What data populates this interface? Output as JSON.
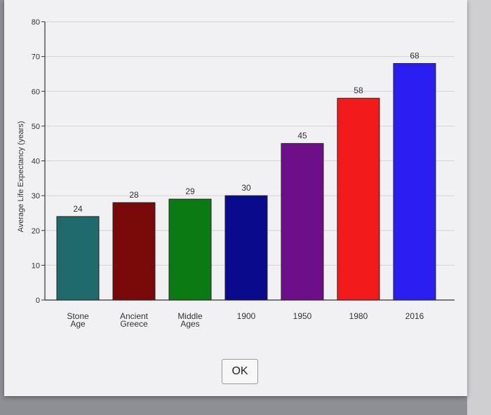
{
  "colors": {
    "panel_bg": "#f1f1f3",
    "gridline": "#d2d2d2",
    "axis": "#333333",
    "text": "#333333"
  },
  "dialog": {
    "ok_label": "OK"
  },
  "chart_data": {
    "type": "bar",
    "categories": [
      "Stone Age",
      "Ancient Greece",
      "Middle Ages",
      "1900",
      "1950",
      "1980",
      "2016"
    ],
    "category_lines": [
      [
        "Stone",
        "Age"
      ],
      [
        "Ancient",
        "Greece"
      ],
      [
        "Middle",
        "Ages"
      ],
      [
        "1900"
      ],
      [
        "1950"
      ],
      [
        "1980"
      ],
      [
        "2016"
      ]
    ],
    "values": [
      24,
      28,
      29,
      30,
      45,
      58,
      68
    ],
    "bar_colors": [
      "#1f6a6a",
      "#7a0a0a",
      "#0c7a12",
      "#0a0a8c",
      "#6e0f8a",
      "#f21a1a",
      "#2a1ef0"
    ],
    "ylabel": "Average Life Expectancy (years)",
    "ylim": [
      0,
      80
    ],
    "yticks": [
      0,
      10,
      20,
      30,
      40,
      50,
      60,
      70,
      80
    ],
    "grid": true,
    "legend": "none"
  }
}
